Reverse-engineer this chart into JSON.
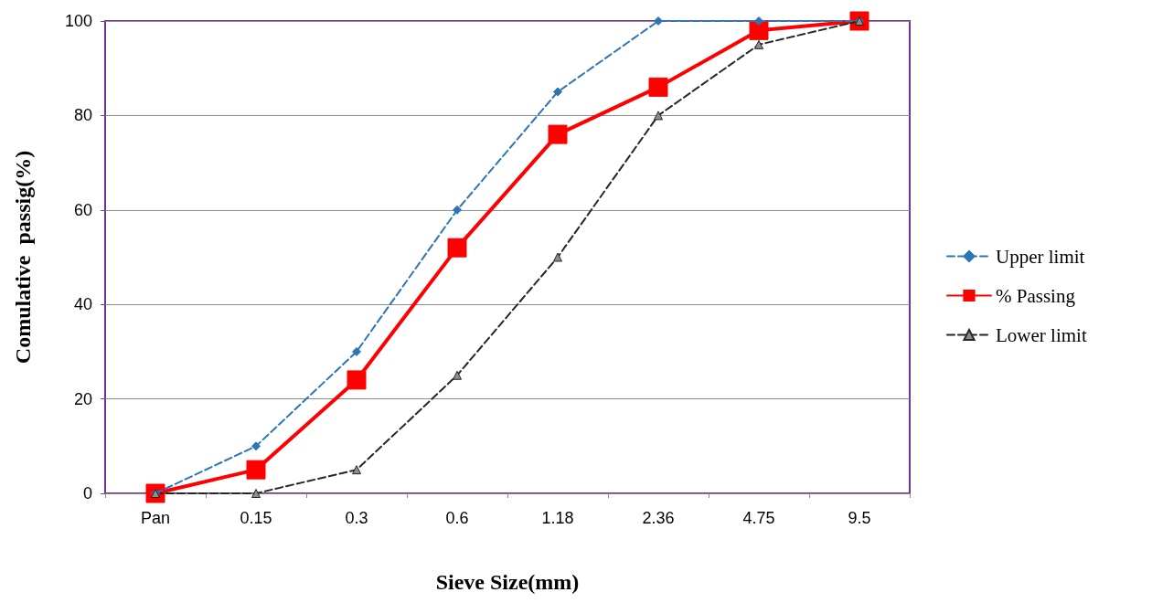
{
  "chart_data": {
    "type": "line",
    "xlabel": "Sieve Size(mm)",
    "ylabel": "Comulative  passig(%)",
    "categories": [
      "Pan",
      "0.15",
      "0.3",
      "0.6",
      "1.18",
      "2.36",
      "4.75",
      "9.5"
    ],
    "series": [
      {
        "name": "Upper limit",
        "color": "#2e75b6",
        "values": [
          0,
          10,
          30,
          60,
          85,
          100,
          100,
          100
        ],
        "marker": "diamond",
        "line_style": "dashed"
      },
      {
        "name": "% Passing",
        "color": "#ff0000",
        "values": [
          0,
          5,
          24,
          52,
          76,
          86,
          98,
          100
        ],
        "marker": "square",
        "line_style": "solid"
      },
      {
        "name": "Lower limit",
        "color": "#262626",
        "values": [
          0,
          0,
          5,
          25,
          50,
          80,
          95,
          100
        ],
        "marker": "triangle",
        "line_style": "dashed"
      }
    ],
    "ylim": [
      0,
      100
    ],
    "yticks": [
      0,
      20,
      40,
      60,
      80,
      100
    ],
    "grid": "y",
    "legend": "right"
  }
}
